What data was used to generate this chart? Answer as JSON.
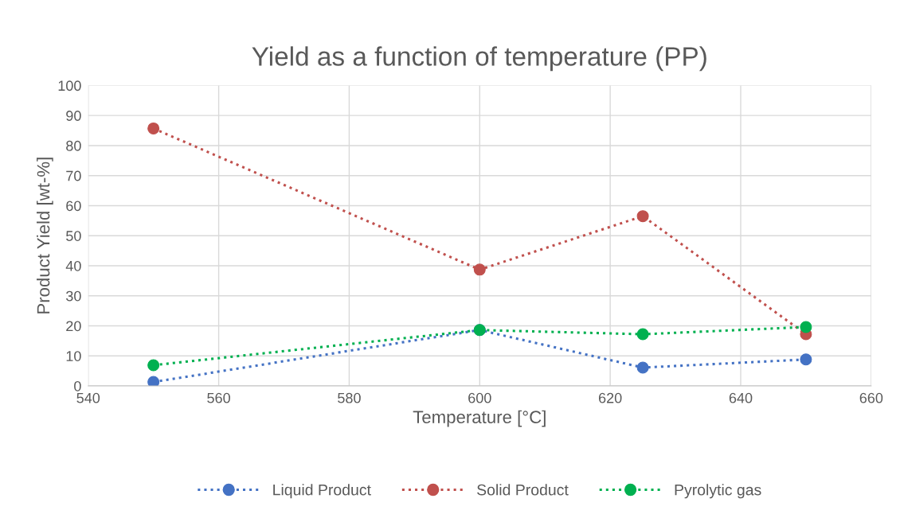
{
  "chart_data": {
    "type": "line",
    "title": "Yield as a function of temperature (PP)",
    "xlabel": "Temperature [°C]",
    "ylabel": "Product Yield [wt-%]",
    "x": [
      550,
      600,
      625,
      650
    ],
    "series": [
      {
        "name": "Liquid Product",
        "color": "#4472c4",
        "values": [
          1.3,
          18.6,
          6.1,
          8.8
        ]
      },
      {
        "name": "Solid Product",
        "color": "#c0504d",
        "values": [
          85.7,
          38.7,
          56.5,
          17.2
        ]
      },
      {
        "name": "Pyrolytic gas",
        "color": "#00b050",
        "values": [
          6.9,
          18.6,
          17.2,
          19.6
        ]
      }
    ],
    "xlim": [
      540,
      660
    ],
    "xticks": [
      540,
      560,
      580,
      600,
      620,
      640,
      660
    ],
    "ylim": [
      0,
      100
    ],
    "yticks": [
      0,
      10,
      20,
      30,
      40,
      50,
      60,
      70,
      80,
      90,
      100
    ],
    "grid": true,
    "legend": "bottom",
    "marker": "circle",
    "line_style": "dotted"
  }
}
